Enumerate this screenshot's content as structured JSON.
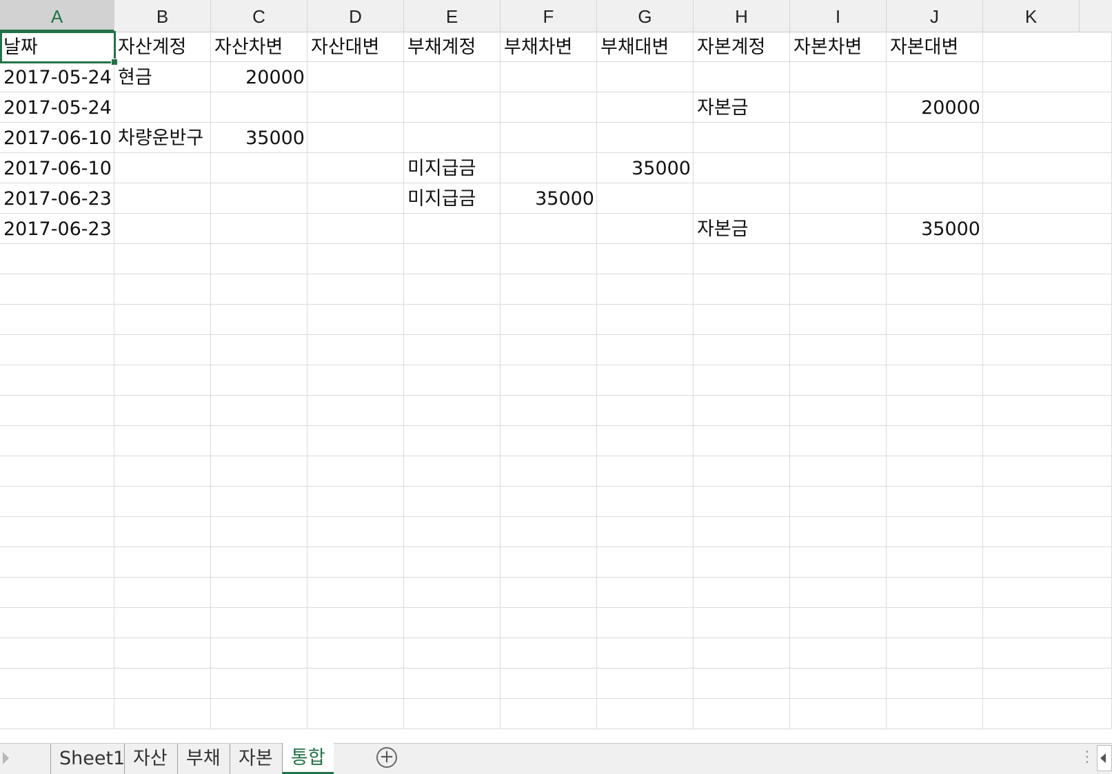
{
  "columns": [
    "A",
    "B",
    "C",
    "D",
    "E",
    "F",
    "G",
    "H",
    "I",
    "J",
    "K"
  ],
  "rows": [
    [
      "날짜",
      "자산계정",
      "자산차변",
      "자산대변",
      "부채계정",
      "부채차변",
      "부채대변",
      "자본계정",
      "자본차변",
      "자본대변",
      ""
    ],
    [
      "2017-05-24",
      "현금",
      "20000",
      "",
      "",
      "",
      "",
      "",
      "",
      "",
      ""
    ],
    [
      "2017-05-24",
      "",
      "",
      "",
      "",
      "",
      "",
      "자본금",
      "",
      "20000",
      ""
    ],
    [
      "2017-06-10",
      "차량운반구",
      "35000",
      "",
      "",
      "",
      "",
      "",
      "",
      "",
      ""
    ],
    [
      "2017-06-10",
      "",
      "",
      "",
      "미지급금",
      "",
      "35000",
      "",
      "",
      "",
      ""
    ],
    [
      "2017-06-23",
      "",
      "",
      "",
      "미지급금",
      "35000",
      "",
      "",
      "",
      "",
      ""
    ],
    [
      "2017-06-23",
      "",
      "",
      "",
      "",
      "",
      "",
      "자본금",
      "",
      "35000",
      ""
    ]
  ],
  "sheet_tabs": [
    "Sheet1",
    "자산",
    "부채",
    "자본",
    "통합"
  ],
  "active_tab": "통합",
  "active_cell": "A1",
  "accent_color": "#217346",
  "icons": {
    "add_sheet": "plus-circle-icon",
    "tab_options": "vertical-ellipsis-icon",
    "scroll_left": "chevron-left-icon"
  }
}
